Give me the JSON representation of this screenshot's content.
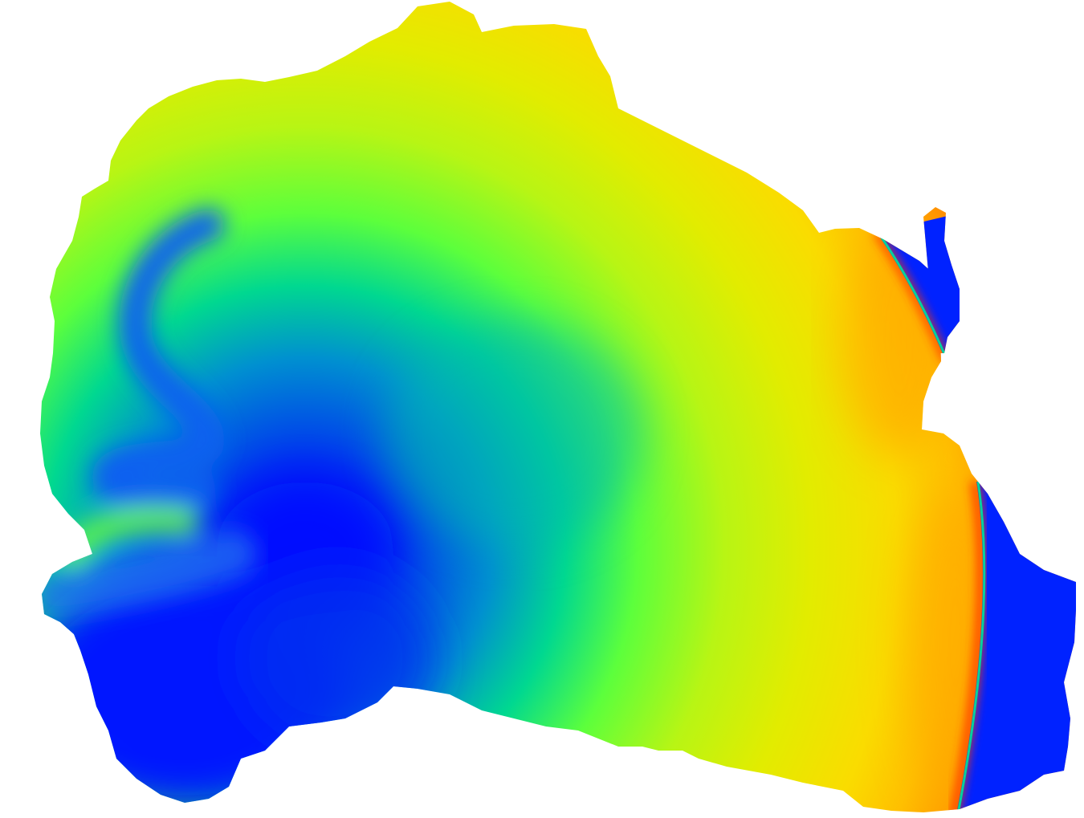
{
  "map": {
    "type": "scalar-field-heatmap",
    "colormap": "jet",
    "background": "#ffffff",
    "colors": {
      "low": "#0010ff",
      "mid_low": "#00c8a0",
      "mid": "#8cff28",
      "mid_high": "#e6f000",
      "high": "#ffd700",
      "peak": "#ff3200"
    },
    "features": [
      "main-landmass",
      "northeast-lobe",
      "southeast-lobe",
      "sharp-front-line",
      "blue-sink-region",
      "serpentine-channel"
    ]
  }
}
